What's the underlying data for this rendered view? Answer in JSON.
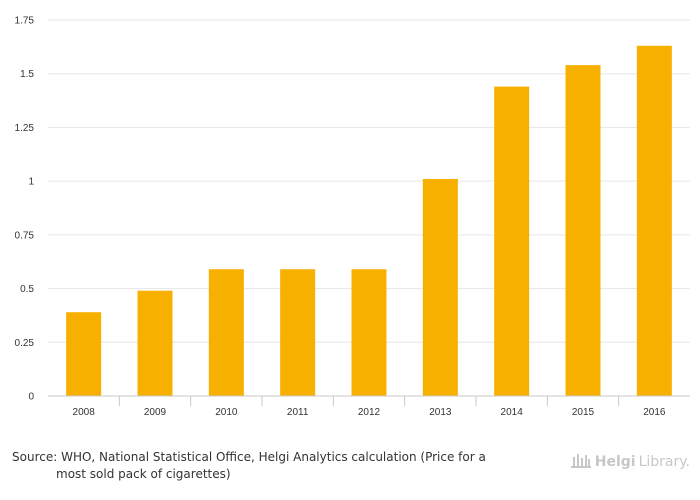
{
  "chart_data": {
    "type": "bar",
    "categories": [
      "2008",
      "2009",
      "2010",
      "2011",
      "2012",
      "2013",
      "2014",
      "2015",
      "2016"
    ],
    "values": [
      0.39,
      0.49,
      0.59,
      0.59,
      0.59,
      1.01,
      1.44,
      1.54,
      1.63
    ],
    "y_ticks": [
      "0",
      "0.25",
      "0.5",
      "0.75",
      "1",
      "1.25",
      "1.5",
      "1.75"
    ],
    "ylim": [
      0,
      1.75
    ],
    "grid": true,
    "bar_color": "#f8b000",
    "title": "",
    "xlabel": "",
    "ylabel": ""
  },
  "footer": {
    "source_prefix": "Source:",
    "source_line1": " WHO, National Statistical Office, Helgi Analytics calculation (Price for a",
    "source_line2": "most sold pack of cigarettes)",
    "logo_part1": "Helgi",
    "logo_part2": "Library.",
    "logo_icon": "library-columns-icon"
  }
}
